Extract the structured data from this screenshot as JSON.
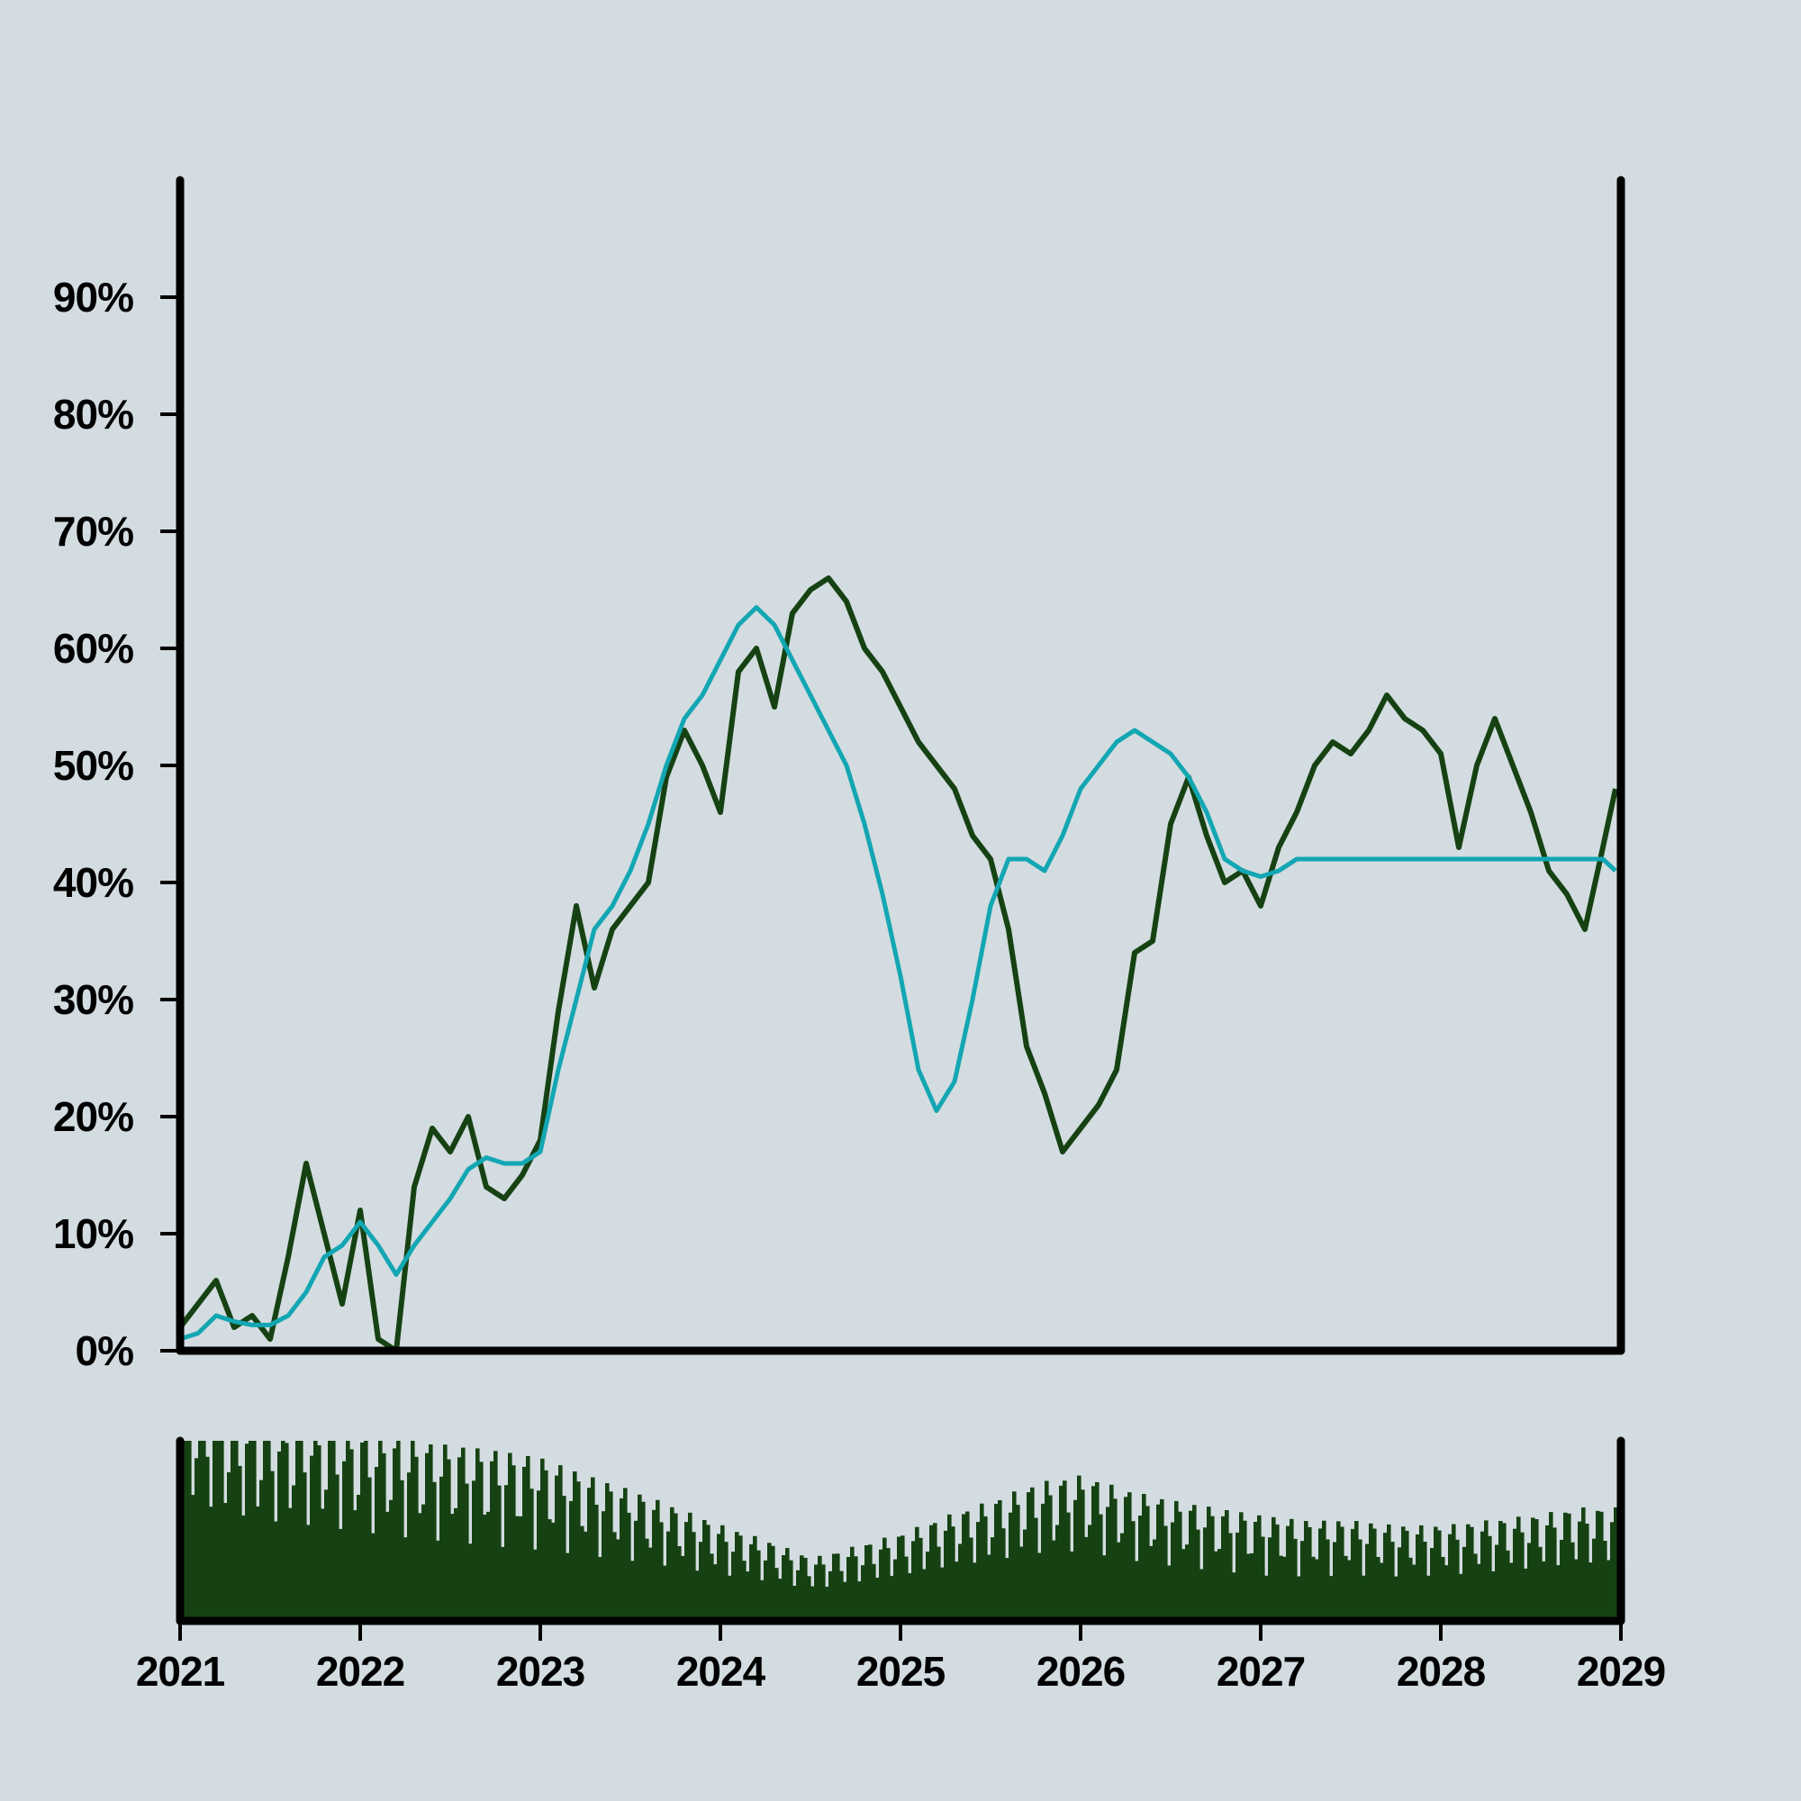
{
  "chart_data": {
    "type": "line",
    "title": "",
    "xlabel": "",
    "ylabel": "",
    "x_range": [
      2021.0,
      2029.0
    ],
    "ylim": [
      0,
      100
    ],
    "y_ticks": [
      0,
      10,
      20,
      30,
      40,
      50,
      60,
      70,
      80,
      90
    ],
    "y_tick_labels": [
      "0%",
      "10%",
      "20%",
      "30%",
      "40%",
      "50%",
      "60%",
      "70%",
      "80%",
      "90%"
    ],
    "x_ticks": [
      2021,
      2022,
      2023,
      2024,
      2025,
      2026,
      2027,
      2028,
      2029
    ],
    "x_tick_labels": [
      "2021",
      "2022",
      "2023",
      "2024",
      "2025",
      "2026",
      "2027",
      "2028",
      "2029"
    ],
    "grid": false,
    "legend": "none",
    "colors": {
      "background": "#d3dce0",
      "price_line": "#164213",
      "moving_average": "#13a6b3",
      "volume_bars": "#164213",
      "axes": "#000000"
    },
    "series": [
      {
        "role": "price",
        "x": [
          2021.0,
          2021.1,
          2021.2,
          2021.3,
          2021.4,
          2021.5,
          2021.6,
          2021.7,
          2021.8,
          2021.9,
          2022.0,
          2022.1,
          2022.2,
          2022.3,
          2022.4,
          2022.5,
          2022.6,
          2022.7,
          2022.8,
          2022.9,
          2023.0,
          2023.1,
          2023.2,
          2023.3,
          2023.4,
          2023.5,
          2023.6,
          2023.7,
          2023.8,
          2023.9,
          2024.0,
          2024.1,
          2024.2,
          2024.3,
          2024.4,
          2024.5,
          2024.6,
          2024.7,
          2024.8,
          2024.9,
          2025.0,
          2025.1,
          2025.2,
          2025.3,
          2025.4,
          2025.5,
          2025.6,
          2025.7,
          2025.8,
          2025.9,
          2026.0,
          2026.1,
          2026.2,
          2026.3,
          2026.4,
          2026.5,
          2026.6,
          2026.7,
          2026.8,
          2026.9,
          2027.0,
          2027.1,
          2027.2,
          2027.3,
          2027.4,
          2027.5,
          2027.6,
          2027.7,
          2027.8,
          2027.9,
          2028.0,
          2028.1,
          2028.2,
          2028.3,
          2028.4,
          2028.5,
          2028.6,
          2028.7,
          2028.8,
          2028.9,
          2028.97
        ],
        "values": [
          2,
          4,
          6,
          2,
          3,
          1,
          8,
          16,
          10,
          4,
          12,
          1,
          0,
          14,
          19,
          17,
          20,
          14,
          13,
          15,
          18,
          29,
          38,
          31,
          36,
          38,
          40,
          49,
          53,
          50,
          46,
          58,
          60,
          55,
          63,
          65,
          66,
          64,
          60,
          58,
          55,
          52,
          50,
          48,
          44,
          42,
          36,
          26,
          22,
          17,
          19,
          21,
          24,
          34,
          35,
          45,
          49,
          44,
          40,
          41,
          38,
          43,
          46,
          50,
          52,
          51,
          53,
          56,
          54,
          53,
          51,
          43,
          50,
          54,
          50,
          46,
          41,
          39,
          36,
          43,
          48
        ]
      },
      {
        "role": "moving average",
        "x": [
          2021.0,
          2021.1,
          2021.2,
          2021.3,
          2021.4,
          2021.5,
          2021.6,
          2021.7,
          2021.8,
          2021.9,
          2022.0,
          2022.1,
          2022.2,
          2022.3,
          2022.4,
          2022.5,
          2022.6,
          2022.7,
          2022.8,
          2022.9,
          2023.0,
          2023.1,
          2023.2,
          2023.3,
          2023.4,
          2023.5,
          2023.6,
          2023.7,
          2023.8,
          2023.9,
          2024.0,
          2024.1,
          2024.2,
          2024.3,
          2024.4,
          2024.5,
          2024.6,
          2024.7,
          2024.8,
          2024.9,
          2025.0,
          2025.1,
          2025.2,
          2025.3,
          2025.4,
          2025.5,
          2025.6,
          2025.7,
          2025.8,
          2025.9,
          2026.0,
          2026.1,
          2026.2,
          2026.3,
          2026.4,
          2026.5,
          2026.6,
          2026.7,
          2026.8,
          2026.9,
          2027.0,
          2027.1,
          2027.2,
          2027.3,
          2027.4,
          2027.5,
          2027.6,
          2027.7,
          2027.8,
          2027.9,
          2028.0,
          2028.1,
          2028.2,
          2028.3,
          2028.4,
          2028.5,
          2028.6,
          2028.7,
          2028.8,
          2028.9,
          2028.97
        ],
        "values": [
          1,
          1.5,
          3,
          2.5,
          2.2,
          2.2,
          3,
          5,
          8,
          9,
          11,
          9,
          6.5,
          9,
          11,
          13,
          15.5,
          16.5,
          16,
          16,
          17,
          24,
          30,
          36,
          38,
          41,
          45,
          50,
          54,
          56,
          59,
          62,
          63.5,
          62,
          59,
          56,
          53,
          50,
          45,
          39,
          32,
          24,
          20.5,
          23,
          30,
          38,
          42,
          42,
          41,
          44,
          48,
          50,
          52,
          53,
          52,
          51,
          49,
          46,
          42,
          41,
          40.5,
          41,
          42,
          42,
          42,
          42,
          42,
          42,
          42,
          42,
          42,
          42,
          42,
          42,
          42,
          42,
          42,
          42,
          42,
          42,
          41
        ]
      }
    ],
    "volume": {
      "x": [
        2021.0,
        2021.25,
        2021.5,
        2021.75,
        2022.0,
        2022.25,
        2022.5,
        2022.75,
        2023.0,
        2023.25,
        2023.5,
        2023.75,
        2024.0,
        2024.25,
        2024.5,
        2024.75,
        2025.0,
        2025.25,
        2025.5,
        2025.75,
        2026.0,
        2026.25,
        2026.5,
        2026.75,
        2027.0,
        2027.25,
        2027.5,
        2027.75,
        2028.0,
        2028.25,
        2028.5,
        2028.75,
        2029.0
      ],
      "values": [
        0.95,
        0.85,
        0.8,
        0.78,
        0.75,
        0.72,
        0.7,
        0.68,
        0.65,
        0.58,
        0.52,
        0.45,
        0.38,
        0.32,
        0.25,
        0.3,
        0.35,
        0.42,
        0.48,
        0.55,
        0.58,
        0.52,
        0.48,
        0.45,
        0.42,
        0.4,
        0.4,
        0.38,
        0.38,
        0.4,
        0.42,
        0.45,
        0.45
      ],
      "ylim": [
        0,
        1
      ]
    }
  }
}
